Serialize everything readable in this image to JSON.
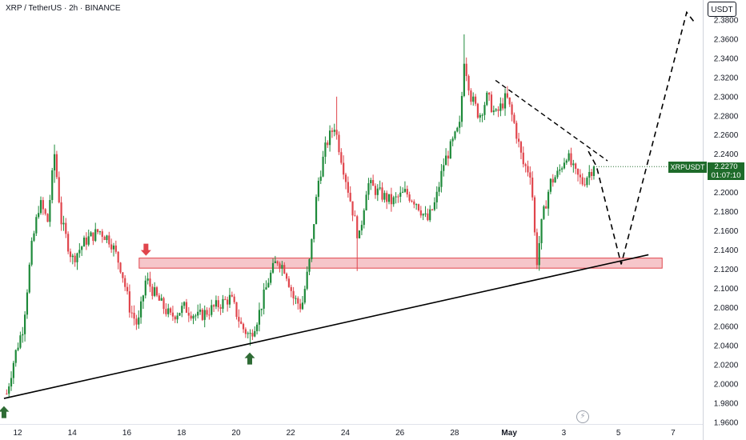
{
  "header": {
    "title": "XRP / TetherUS · 2h · BINANCE",
    "currency": "USDT"
  },
  "price_marker": {
    "symbol": "XRPUSDT",
    "price": "2.2270",
    "countdown": "01:07:10",
    "color": "#1e6b2a"
  },
  "colors": {
    "up": "#1e8a3a",
    "down": "#e0454c",
    "zone_fill": "#f4b8bd",
    "zone_stroke": "#e0454c",
    "arrow_up": "#2e6b34",
    "arrow_down": "#e0454c",
    "line": "#000000"
  },
  "icons": {
    "watermark": "lightning-icon"
  },
  "chart_data": {
    "type": "candlestick",
    "title": "XRP / TetherUS · 2h · BINANCE",
    "xlabel": "",
    "ylabel": "",
    "ylim": [
      1.945,
      2.395
    ],
    "yticks": [
      "2.3800",
      "2.3600",
      "2.3400",
      "2.3200",
      "2.3000",
      "2.2800",
      "2.2600",
      "2.2400",
      "2.2200",
      "2.2000",
      "2.1800",
      "2.1600",
      "2.1400",
      "2.1200",
      "2.1000",
      "2.0800",
      "2.0600",
      "2.0400",
      "2.0200",
      "2.0000",
      "1.9800",
      "1.9600"
    ],
    "xticks": [
      "12",
      "14",
      "16",
      "18",
      "20",
      "22",
      "24",
      "26",
      "28",
      "May",
      "3",
      "5",
      "7"
    ],
    "xtick_days": [
      12,
      14,
      16,
      18,
      20,
      22,
      24,
      26,
      28,
      30,
      32,
      34,
      36
    ],
    "grid": false,
    "last_price": 2.227,
    "anchors": [
      [
        11.6,
        1.99
      ],
      [
        11.9,
        2.03
      ],
      [
        12.2,
        2.06
      ],
      [
        12.5,
        2.14
      ],
      [
        12.8,
        2.19
      ],
      [
        13.1,
        2.17
      ],
      [
        13.35,
        2.24
      ],
      [
        13.6,
        2.17
      ],
      [
        14.0,
        2.13
      ],
      [
        14.5,
        2.15
      ],
      [
        15.0,
        2.16
      ],
      [
        15.4,
        2.15
      ],
      [
        15.8,
        2.12
      ],
      [
        16.1,
        2.08
      ],
      [
        16.4,
        2.06
      ],
      [
        16.7,
        2.11
      ],
      [
        17.1,
        2.09
      ],
      [
        17.6,
        2.07
      ],
      [
        18.1,
        2.08
      ],
      [
        18.6,
        2.07
      ],
      [
        19.2,
        2.08
      ],
      [
        19.8,
        2.09
      ],
      [
        20.2,
        2.06
      ],
      [
        20.5,
        2.05
      ],
      [
        20.8,
        2.07
      ],
      [
        21.2,
        2.11
      ],
      [
        21.5,
        2.13
      ],
      [
        21.8,
        2.12
      ],
      [
        22.1,
        2.09
      ],
      [
        22.4,
        2.08
      ],
      [
        22.7,
        2.13
      ],
      [
        23.0,
        2.21
      ],
      [
        23.3,
        2.25
      ],
      [
        23.6,
        2.27
      ],
      [
        23.9,
        2.23
      ],
      [
        24.2,
        2.19
      ],
      [
        24.5,
        2.15
      ],
      [
        24.8,
        2.21
      ],
      [
        25.2,
        2.2
      ],
      [
        25.7,
        2.19
      ],
      [
        26.2,
        2.2
      ],
      [
        26.6,
        2.19
      ],
      [
        27.0,
        2.17
      ],
      [
        27.3,
        2.19
      ],
      [
        27.6,
        2.23
      ],
      [
        27.9,
        2.25
      ],
      [
        28.2,
        2.27
      ],
      [
        28.35,
        2.34
      ],
      [
        28.6,
        2.3
      ],
      [
        28.9,
        2.28
      ],
      [
        29.2,
        2.3
      ],
      [
        29.5,
        2.28
      ],
      [
        29.9,
        2.3
      ],
      [
        30.2,
        2.27
      ],
      [
        30.5,
        2.23
      ],
      [
        30.8,
        2.22
      ],
      [
        31.0,
        2.125
      ],
      [
        31.2,
        2.17
      ],
      [
        31.5,
        2.21
      ],
      [
        31.8,
        2.22
      ],
      [
        32.1,
        2.24
      ],
      [
        32.4,
        2.22
      ],
      [
        32.7,
        2.21
      ],
      [
        32.9,
        2.22
      ],
      [
        33.1,
        2.227
      ]
    ],
    "extremes": [
      [
        13.35,
        2.25,
        2.21
      ],
      [
        20.5,
        2.05,
        2.04
      ],
      [
        23.7,
        2.3,
        2.26
      ],
      [
        24.4,
        2.17,
        2.118
      ],
      [
        28.35,
        2.365,
        2.32
      ],
      [
        31.0,
        2.15,
        2.12
      ]
    ],
    "annotations": {
      "resistance_zone": {
        "x1": 16.45,
        "x2": 35.6,
        "y1": 2.1315,
        "y2": 2.121
      },
      "trendline": [
        [
          11.5,
          1.985
        ],
        [
          35.1,
          2.135
        ]
      ],
      "downtrend_line": [
        [
          29.5,
          2.317
        ],
        [
          33.6,
          2.233
        ]
      ],
      "projected_path": [
        [
          32.9,
          2.243
        ],
        [
          33.2,
          2.227
        ],
        [
          34.1,
          2.125
        ],
        [
          36.5,
          2.388
        ],
        [
          36.8,
          2.377
        ]
      ],
      "arrows_up": [
        [
          11.5,
          1.977
        ],
        [
          20.5,
          2.033
        ]
      ],
      "arrows_down": [
        [
          16.7,
          2.134
        ]
      ]
    }
  }
}
